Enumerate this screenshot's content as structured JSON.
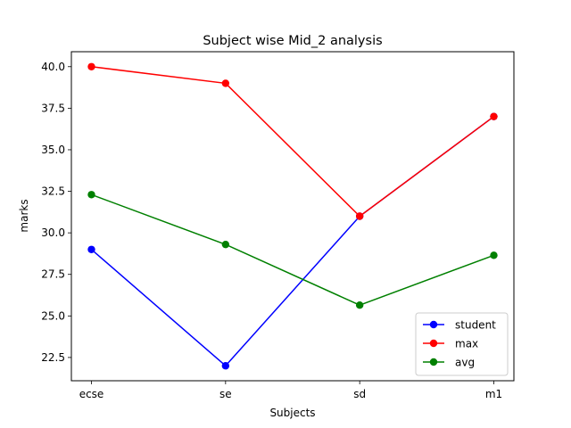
{
  "chart_data": {
    "type": "line",
    "title": "Subject wise Mid_2 analysis",
    "xlabel": "Subjects",
    "ylabel": "marks",
    "categories": [
      "ecse",
      "se",
      "sd",
      "m1"
    ],
    "ylim": [
      21.1,
      40.9
    ],
    "yticks": [
      "22.5",
      "25.0",
      "27.5",
      "30.0",
      "32.5",
      "35.0",
      "37.5",
      "40.0"
    ],
    "grid": false,
    "legend_position": "lower-right",
    "series": [
      {
        "name": "student",
        "color": "#0000ff",
        "values": [
          29,
          22,
          31,
          37
        ]
      },
      {
        "name": "max",
        "color": "#ff0000",
        "values": [
          40,
          39,
          31,
          37
        ]
      },
      {
        "name": "avg",
        "color": "#008000",
        "values": [
          32.3,
          29.3,
          25.65,
          28.65
        ]
      }
    ]
  }
}
